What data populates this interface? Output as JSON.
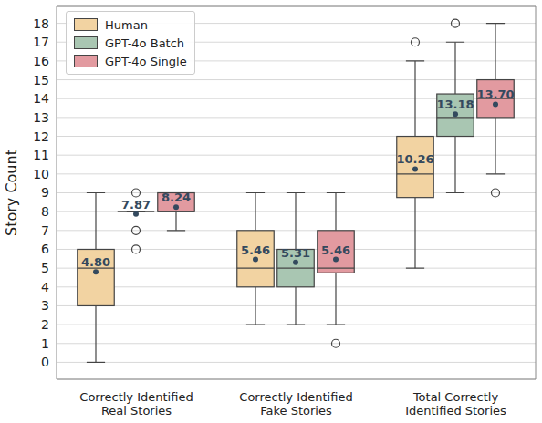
{
  "chart_data": {
    "type": "box",
    "y_label": "Story Count",
    "categories": [
      "Correctly Identified Real Stories",
      "Correctly Identified Fake Stories",
      "Total Correctly Identified Stories"
    ],
    "ylim": [
      -0.9,
      18.9
    ],
    "yticks": [
      0,
      1,
      2,
      3,
      4,
      5,
      6,
      7,
      8,
      9,
      10,
      11,
      12,
      13,
      14,
      15,
      16,
      17,
      18
    ],
    "grid": true,
    "legend": "upper left",
    "data_labels": true,
    "series": [
      {
        "name": "Human",
        "color": "#f2d3a2",
        "values": [
          4.8,
          5.46,
          10.26
        ],
        "value_labels": [
          "4.80",
          "5.46",
          "10.26"
        ],
        "min": [
          0,
          2,
          5
        ],
        "q1": [
          3,
          4,
          8.75
        ],
        "median": [
          5,
          5,
          10
        ],
        "q3": [
          6,
          7,
          12
        ],
        "max": [
          9,
          9,
          16
        ],
        "outliers": [
          [],
          [],
          [
            17
          ]
        ]
      },
      {
        "name": "GPT-4o Batch",
        "color": "#a9c6b2",
        "values": [
          7.87,
          5.31,
          13.18
        ],
        "value_labels": [
          "7.87",
          "5.31",
          "13.18"
        ],
        "min": [
          8,
          2,
          9
        ],
        "q1": [
          8,
          4,
          12
        ],
        "median": [
          8,
          5,
          13
        ],
        "q3": [
          8,
          6,
          14.25
        ],
        "max": [
          8,
          9,
          17
        ],
        "outliers": [
          [
            6,
            7,
            9
          ],
          [],
          [
            18
          ]
        ]
      },
      {
        "name": "GPT-4o Single",
        "color": "#e29aa0",
        "values": [
          8.24,
          5.46,
          13.7
        ],
        "value_labels": [
          "8.24",
          "5.46",
          "13.70"
        ],
        "min": [
          7,
          2,
          10
        ],
        "q1": [
          8,
          4.75,
          13
        ],
        "median": [
          8,
          5,
          14
        ],
        "q3": [
          9,
          7,
          15
        ],
        "max": [
          9,
          9,
          18
        ],
        "outliers": [
          [],
          [
            1
          ],
          [
            9
          ]
        ]
      }
    ]
  }
}
